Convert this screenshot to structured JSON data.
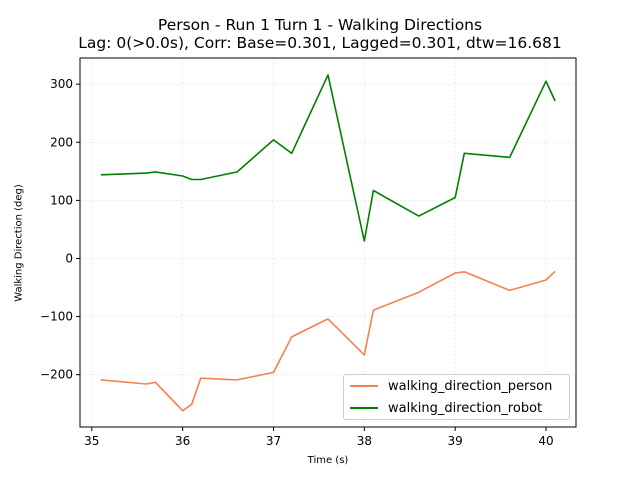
{
  "title_line1": "Person - Run 1 Turn 1 - Walking Directions",
  "title_line2": "Lag: 0(>0.0s), Corr: Base=0.301, Lagged=0.301, dtw=16.681",
  "chart_data": {
    "type": "line",
    "xlabel": "Time (s)",
    "ylabel": "Walking Direction (deg)",
    "xlim": [
      34.87,
      40.33
    ],
    "ylim": [
      -290,
      345
    ],
    "xticks": [
      35,
      36,
      37,
      38,
      39,
      40
    ],
    "yticks": [
      -200,
      -100,
      0,
      100,
      200,
      300
    ],
    "grid": true,
    "legend_position": "lower-right",
    "series": [
      {
        "name": "walking_direction_person",
        "color": "#f4814f",
        "x": [
          35.1,
          35.6,
          35.7,
          36.0,
          36.1,
          36.2,
          36.6,
          37.0,
          37.2,
          37.6,
          38.0,
          38.1,
          38.6,
          39.0,
          39.1,
          39.6,
          40.0,
          40.1
        ],
        "y": [
          -209,
          -216,
          -213,
          -262,
          -251,
          -206,
          -209,
          -196,
          -135,
          -104,
          -166,
          -89,
          -58,
          -25,
          -23,
          -55,
          -37,
          -22
        ]
      },
      {
        "name": "walking_direction_robot",
        "color": "#008000",
        "x": [
          35.1,
          35.6,
          35.7,
          36.0,
          36.1,
          36.2,
          36.6,
          37.0,
          37.2,
          37.6,
          38.0,
          38.1,
          38.6,
          39.0,
          39.1,
          39.6,
          40.0,
          40.1
        ],
        "y": [
          144,
          147,
          149,
          142,
          136,
          136,
          149,
          204,
          181,
          316,
          30,
          117,
          73,
          105,
          181,
          174,
          305,
          271
        ]
      }
    ]
  }
}
